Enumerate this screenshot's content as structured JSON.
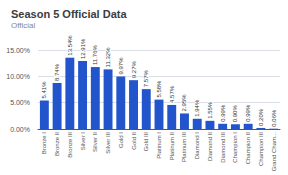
{
  "chart_data": {
    "type": "bar",
    "title": "Season 5 Official Data",
    "subtitle": "Official",
    "categories": [
      "Bronze I",
      "Bronze II",
      "Bronze III",
      "Silver I",
      "Silver II",
      "Silver III",
      "Gold I",
      "Gold II",
      "Gold III",
      "Platinum I",
      "Platinum II",
      "Platinum III",
      "Diamond I",
      "Diamond II",
      "Diamond III",
      "Champion I",
      "Champion II",
      "Champion III",
      "Grand Cham..."
    ],
    "values": [
      5.41,
      8.74,
      13.54,
      12.91,
      11.76,
      11.32,
      9.97,
      9.27,
      7.57,
      5.58,
      4.57,
      2.95,
      1.94,
      1.55,
      0.99,
      0.9,
      0.99,
      0.2,
      0.06
    ],
    "value_labels": [
      "5.41%",
      "8.74%",
      "13.54%",
      "12.91%",
      "11.76%",
      "11.32%",
      "9.97%",
      "9.27%",
      "7.57%",
      "5.58%",
      "4.57%",
      "2.95%",
      "1.94%",
      "1.55%",
      "0.99%",
      "0.90%",
      "0.99%",
      "0.20%",
      "0.06%"
    ],
    "data_labels": true,
    "color": "#2255CC",
    "ylim": [
      0,
      15
    ],
    "yticks": [
      {
        "value": 0,
        "label": "0.00%"
      },
      {
        "value": 5,
        "label": "5.00%"
      },
      {
        "value": 10,
        "label": "10.00%"
      },
      {
        "value": 15,
        "label": "15.00%"
      }
    ],
    "grid": true
  }
}
